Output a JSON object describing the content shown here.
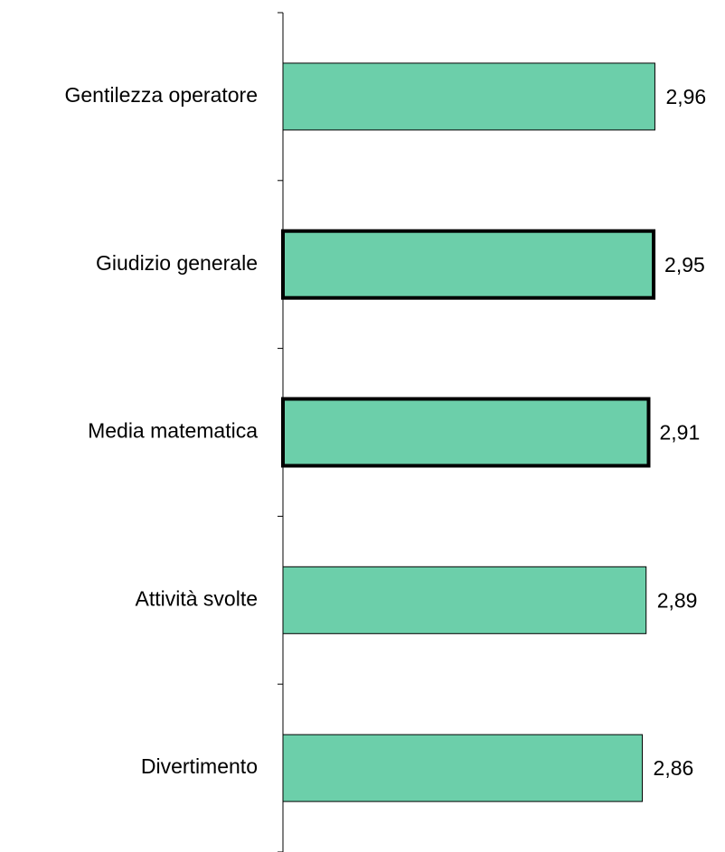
{
  "chart_data": {
    "type": "hbar",
    "categories": [
      "Gentilezza operatore",
      "Giudizio generale",
      "Media matematica",
      "Attività svolte",
      "Divertimento"
    ],
    "values": [
      2.96,
      2.95,
      2.91,
      2.89,
      2.86
    ],
    "value_labels": [
      "2,96",
      "2,95",
      "2,91",
      "2,89",
      "2,86"
    ],
    "color": "#6ccfaa",
    "edge_widths": [
      1,
      4,
      4,
      1,
      1
    ],
    "xlim": [
      0,
      3
    ]
  }
}
